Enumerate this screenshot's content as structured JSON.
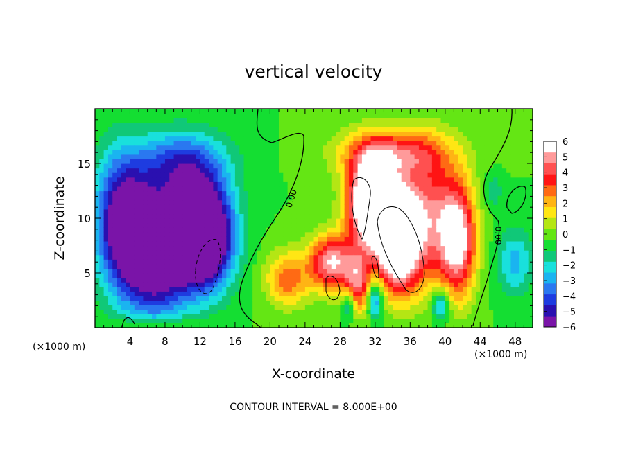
{
  "chart_data": {
    "type": "heatmap",
    "title": "vertical velocity",
    "xlabel": "X-coordinate",
    "ylabel": "Z-coordinate",
    "x_unit_label": "(×1000 m)",
    "x_unit_label_right": "(×1000 m)",
    "xlim": [
      0,
      50
    ],
    "ylim": [
      0,
      20
    ],
    "x_ticks": [
      4,
      8,
      12,
      16,
      20,
      24,
      28,
      32,
      36,
      40,
      44,
      48
    ],
    "y_ticks": [
      5,
      10,
      15
    ],
    "colorbar": {
      "range": [
        -6,
        6
      ],
      "ticks": [
        6,
        5,
        4,
        3,
        2,
        1,
        0,
        -1,
        -2,
        -3,
        -4,
        -5,
        -6
      ],
      "tick_labels": [
        "6",
        "5",
        "4",
        "3",
        "2",
        "1",
        "0",
        "−1",
        "−2",
        "−3",
        "−4",
        "−5",
        "−6"
      ],
      "colors": [
        "#7a14a8",
        "#2a10b0",
        "#1e3ce0",
        "#2a78f0",
        "#1ab4f0",
        "#19e0dc",
        "#10c878",
        "#14de32",
        "#64e614",
        "#b4e614",
        "#ffe614",
        "#ffb414",
        "#ff6a14",
        "#ff1414",
        "#ff5050",
        "#ff9a9a",
        "#ffffff"
      ]
    },
    "contour_interval_text": "CONTOUR INTERVAL = 8.000E+00",
    "contour_labels": [
      "0.00",
      "0.00"
    ],
    "features": [
      {
        "x": 12.5,
        "z": 8.5,
        "amp": -10.0,
        "sx": 3.2,
        "sz": 4.5
      },
      {
        "x": 7.0,
        "z": 7.0,
        "amp": -8.0,
        "sx": 4.0,
        "sz": 5.5
      },
      {
        "x": 3.0,
        "z": 10.0,
        "amp": -5.5,
        "sx": 3.0,
        "sz": 6.0
      },
      {
        "x": 10.0,
        "z": 15.0,
        "amp": -4.0,
        "sx": 5.0,
        "sz": 3.0
      },
      {
        "x": 31.5,
        "z": 11.5,
        "amp": 10.0,
        "sx": 2.6,
        "sz": 4.0
      },
      {
        "x": 34.5,
        "z": 8.0,
        "amp": 9.0,
        "sx": 2.4,
        "sz": 4.5
      },
      {
        "x": 38.0,
        "z": 10.0,
        "amp": 5.0,
        "sx": 3.5,
        "sz": 6.0
      },
      {
        "x": 41.5,
        "z": 8.0,
        "amp": 6.0,
        "sx": 2.0,
        "sz": 5.0
      },
      {
        "x": 27.0,
        "z": 6.0,
        "amp": 6.0,
        "sx": 2.5,
        "sz": 2.5
      },
      {
        "x": 30.0,
        "z": 4.0,
        "amp": 4.5,
        "sx": 1.6,
        "sz": 3.0
      },
      {
        "x": 22.0,
        "z": 4.5,
        "amp": 3.5,
        "sx": 2.5,
        "sz": 2.5
      },
      {
        "x": 34.0,
        "z": 16.0,
        "amp": 4.0,
        "sx": 6.0,
        "sz": 2.2
      },
      {
        "x": 32.0,
        "z": 2.5,
        "amp": -4.0,
        "sx": 0.9,
        "sz": 1.8
      },
      {
        "x": 29.0,
        "z": 2.0,
        "amp": -3.0,
        "sx": 0.8,
        "sz": 1.5
      },
      {
        "x": 39.5,
        "z": 2.0,
        "amp": -3.5,
        "sx": 1.0,
        "sz": 1.5
      },
      {
        "x": 48.0,
        "z": 6.0,
        "amp": -2.5,
        "sx": 2.0,
        "sz": 3.0
      },
      {
        "x": 45.5,
        "z": 12.5,
        "amp": -1.5,
        "sx": 1.0,
        "sz": 1.5
      }
    ]
  }
}
